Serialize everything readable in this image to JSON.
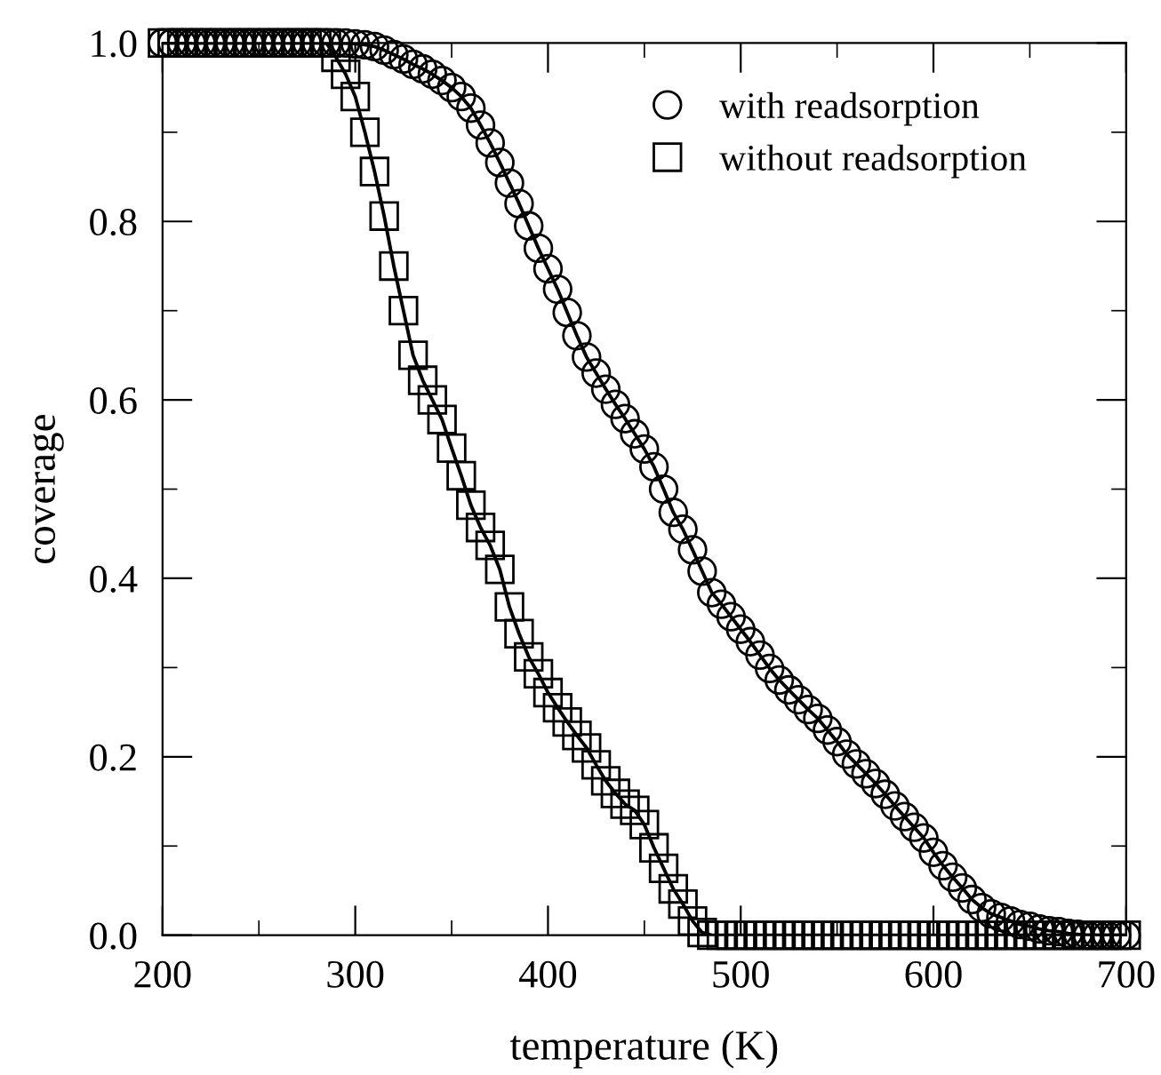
{
  "chart_data": {
    "type": "line",
    "xlabel": "temperature (K)",
    "ylabel": "coverage",
    "xlim": [
      200,
      700
    ],
    "xticks": [
      200,
      300,
      400,
      500,
      600,
      700
    ],
    "ylim": [
      0.0,
      1.0
    ],
    "yticks": [
      {
        "value": 0.0,
        "label": "0.0"
      },
      {
        "value": 0.2,
        "label": "0.2"
      },
      {
        "value": 0.4,
        "label": "0.4"
      },
      {
        "value": 0.6,
        "label": "0.6"
      },
      {
        "value": 0.8,
        "label": "0.8"
      },
      {
        "value": 1.0,
        "label": "1.0"
      }
    ],
    "grid": false,
    "legend": "top right",
    "line_style": "solid",
    "series": [
      {
        "name": "with readsorption",
        "color": "#000000",
        "marker": "circle",
        "x": [
          200,
          205,
          210,
          215,
          220,
          225,
          230,
          235,
          240,
          245,
          250,
          255,
          260,
          265,
          270,
          275,
          280,
          285,
          290,
          295,
          300,
          305,
          310,
          315,
          320,
          325,
          330,
          335,
          340,
          345,
          350,
          355,
          360,
          365,
          370,
          375,
          380,
          385,
          390,
          395,
          400,
          405,
          410,
          415,
          420,
          425,
          430,
          435,
          440,
          445,
          450,
          455,
          460,
          465,
          470,
          475,
          480,
          485,
          490,
          495,
          500,
          505,
          510,
          515,
          520,
          525,
          530,
          535,
          540,
          545,
          550,
          555,
          560,
          565,
          570,
          575,
          580,
          585,
          590,
          595,
          600,
          605,
          610,
          615,
          620,
          625,
          630,
          635,
          640,
          645,
          650,
          655,
          660,
          665,
          670,
          675,
          680,
          685,
          690,
          695,
          700
        ],
        "values": [
          1.0,
          1.0,
          1.0,
          1.0,
          1.0,
          1.0,
          1.0,
          1.0,
          1.0,
          1.0,
          1.0,
          1.0,
          1.0,
          1.0,
          1.0,
          1.0,
          1.0,
          1.0,
          1.0,
          1.0,
          0.999,
          0.998,
          0.996,
          0.992,
          0.987,
          0.982,
          0.976,
          0.971,
          0.965,
          0.958,
          0.95,
          0.94,
          0.927,
          0.908,
          0.888,
          0.866,
          0.843,
          0.82,
          0.795,
          0.77,
          0.747,
          0.724,
          0.698,
          0.672,
          0.648,
          0.63,
          0.612,
          0.595,
          0.579,
          0.562,
          0.545,
          0.525,
          0.5,
          0.474,
          0.455,
          0.432,
          0.408,
          0.384,
          0.371,
          0.357,
          0.343,
          0.329,
          0.314,
          0.299,
          0.286,
          0.275,
          0.264,
          0.253,
          0.243,
          0.23,
          0.217,
          0.203,
          0.192,
          0.181,
          0.17,
          0.158,
          0.145,
          0.133,
          0.121,
          0.109,
          0.093,
          0.078,
          0.065,
          0.053,
          0.04,
          0.031,
          0.024,
          0.02,
          0.016,
          0.012,
          0.01,
          0.007,
          0.005,
          0.004,
          0.002,
          0.001,
          0.0,
          0.0,
          0.0,
          0.0,
          0.0
        ]
      },
      {
        "name": "without readsorption",
        "color": "#000000",
        "marker": "square",
        "x": [
          200,
          205,
          210,
          215,
          220,
          225,
          230,
          235,
          240,
          245,
          250,
          255,
          260,
          265,
          270,
          275,
          280,
          285,
          290,
          295,
          300,
          305,
          310,
          315,
          320,
          325,
          330,
          335,
          340,
          345,
          350,
          355,
          360,
          365,
          370,
          375,
          380,
          385,
          390,
          395,
          400,
          405,
          410,
          415,
          420,
          425,
          430,
          435,
          440,
          445,
          450,
          455,
          460,
          465,
          470,
          475,
          480,
          485,
          490,
          495,
          500,
          505,
          510,
          515,
          520,
          525,
          530,
          535,
          540,
          545,
          550,
          555,
          560,
          565,
          570,
          575,
          580,
          585,
          590,
          595,
          600,
          605,
          610,
          615,
          620,
          625,
          630,
          635,
          640,
          645,
          650,
          655,
          660,
          665,
          670,
          675,
          680,
          685,
          690,
          695,
          700
        ],
        "values": [
          1.0,
          1.0,
          1.0,
          1.0,
          1.0,
          1.0,
          1.0,
          1.0,
          1.0,
          1.0,
          1.0,
          1.0,
          1.0,
          1.0,
          1.0,
          1.0,
          1.0,
          1.0,
          0.984,
          0.965,
          0.94,
          0.9,
          0.856,
          0.806,
          0.75,
          0.7,
          0.65,
          0.622,
          0.6,
          0.578,
          0.546,
          0.515,
          0.482,
          0.457,
          0.437,
          0.41,
          0.368,
          0.338,
          0.312,
          0.293,
          0.272,
          0.255,
          0.239,
          0.224,
          0.21,
          0.191,
          0.173,
          0.159,
          0.147,
          0.14,
          0.124,
          0.098,
          0.075,
          0.052,
          0.035,
          0.016,
          0.003,
          0.0,
          0.0,
          0.0,
          0.0,
          0.0,
          0.0,
          0.0,
          0.0,
          0.0,
          0.0,
          0.0,
          0.0,
          0.0,
          0.0,
          0.0,
          0.0,
          0.0,
          0.0,
          0.0,
          0.0,
          0.0,
          0.0,
          0.0,
          0.0,
          0.0,
          0.0,
          0.0,
          0.0,
          0.0,
          0.0,
          0.0,
          0.0,
          0.0,
          0.0,
          0.0,
          0.0,
          0.0,
          0.0,
          0.0,
          0.0,
          0.0,
          0.0,
          0.0,
          0.0
        ]
      }
    ]
  }
}
